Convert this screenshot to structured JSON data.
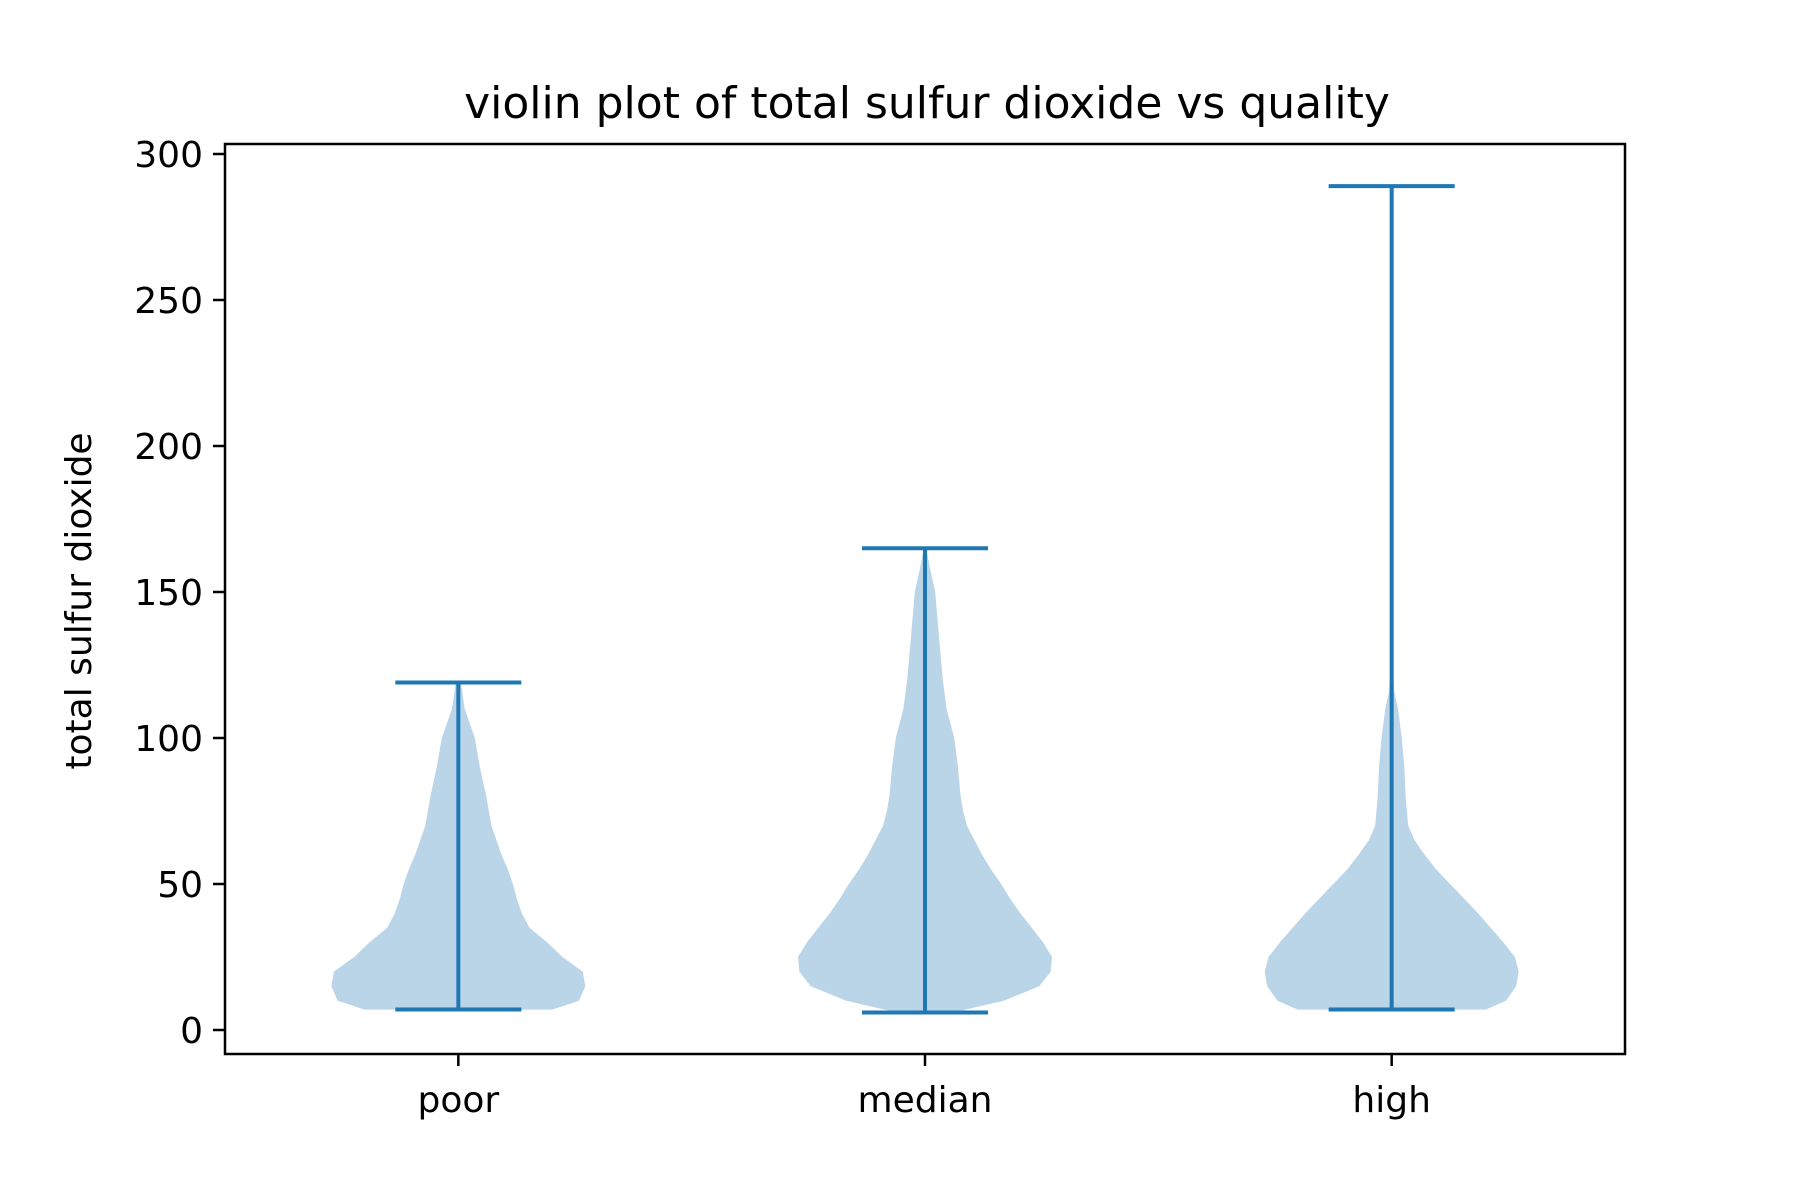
{
  "chart_data": {
    "type": "violin",
    "title": "violin plot of total sulfur dioxide vs quality",
    "xlabel": "",
    "ylabel": "total sulfur dioxide",
    "categories": [
      "poor",
      "median",
      "high"
    ],
    "ylim": [
      -8,
      302
    ],
    "yticks": [
      0,
      50,
      100,
      150,
      200,
      250,
      300
    ],
    "grid": false,
    "colors": {
      "body": "#bad5e8",
      "lines": "#1f77b4"
    },
    "violins": [
      {
        "name": "poor",
        "min": 7,
        "max": 119,
        "density": [
          [
            7,
            0.74
          ],
          [
            10,
            0.95
          ],
          [
            15,
            1.0
          ],
          [
            20,
            0.98
          ],
          [
            25,
            0.82
          ],
          [
            30,
            0.7
          ],
          [
            35,
            0.56
          ],
          [
            40,
            0.5
          ],
          [
            45,
            0.46
          ],
          [
            50,
            0.43
          ],
          [
            55,
            0.39
          ],
          [
            60,
            0.34
          ],
          [
            70,
            0.26
          ],
          [
            80,
            0.22
          ],
          [
            90,
            0.17
          ],
          [
            100,
            0.13
          ],
          [
            110,
            0.05
          ],
          [
            119,
            0.02
          ]
        ]
      },
      {
        "name": "median",
        "min": 6,
        "max": 165,
        "density": [
          [
            6,
            0.22
          ],
          [
            10,
            0.62
          ],
          [
            15,
            0.9
          ],
          [
            20,
            0.99
          ],
          [
            25,
            1.0
          ],
          [
            30,
            0.93
          ],
          [
            35,
            0.84
          ],
          [
            40,
            0.75
          ],
          [
            45,
            0.67
          ],
          [
            50,
            0.6
          ],
          [
            55,
            0.52
          ],
          [
            60,
            0.45
          ],
          [
            65,
            0.39
          ],
          [
            70,
            0.33
          ],
          [
            75,
            0.3
          ],
          [
            80,
            0.28
          ],
          [
            90,
            0.26
          ],
          [
            100,
            0.23
          ],
          [
            110,
            0.17
          ],
          [
            120,
            0.14
          ],
          [
            130,
            0.12
          ],
          [
            140,
            0.1
          ],
          [
            150,
            0.08
          ],
          [
            158,
            0.04
          ],
          [
            165,
            0.01
          ]
        ]
      },
      {
        "name": "high",
        "min": 7,
        "max": 289,
        "density": [
          [
            7,
            0.74
          ],
          [
            10,
            0.9
          ],
          [
            15,
            0.98
          ],
          [
            20,
            1.0
          ],
          [
            25,
            0.97
          ],
          [
            30,
            0.88
          ],
          [
            35,
            0.78
          ],
          [
            40,
            0.68
          ],
          [
            45,
            0.57
          ],
          [
            50,
            0.46
          ],
          [
            55,
            0.35
          ],
          [
            60,
            0.26
          ],
          [
            65,
            0.18
          ],
          [
            70,
            0.13
          ],
          [
            80,
            0.11
          ],
          [
            90,
            0.1
          ],
          [
            100,
            0.08
          ],
          [
            110,
            0.05
          ],
          [
            116,
            0.02
          ],
          [
            125,
            0.006
          ],
          [
            150,
            0.003
          ],
          [
            200,
            0.002
          ],
          [
            250,
            0.001
          ],
          [
            289,
            0.0
          ]
        ]
      }
    ]
  }
}
